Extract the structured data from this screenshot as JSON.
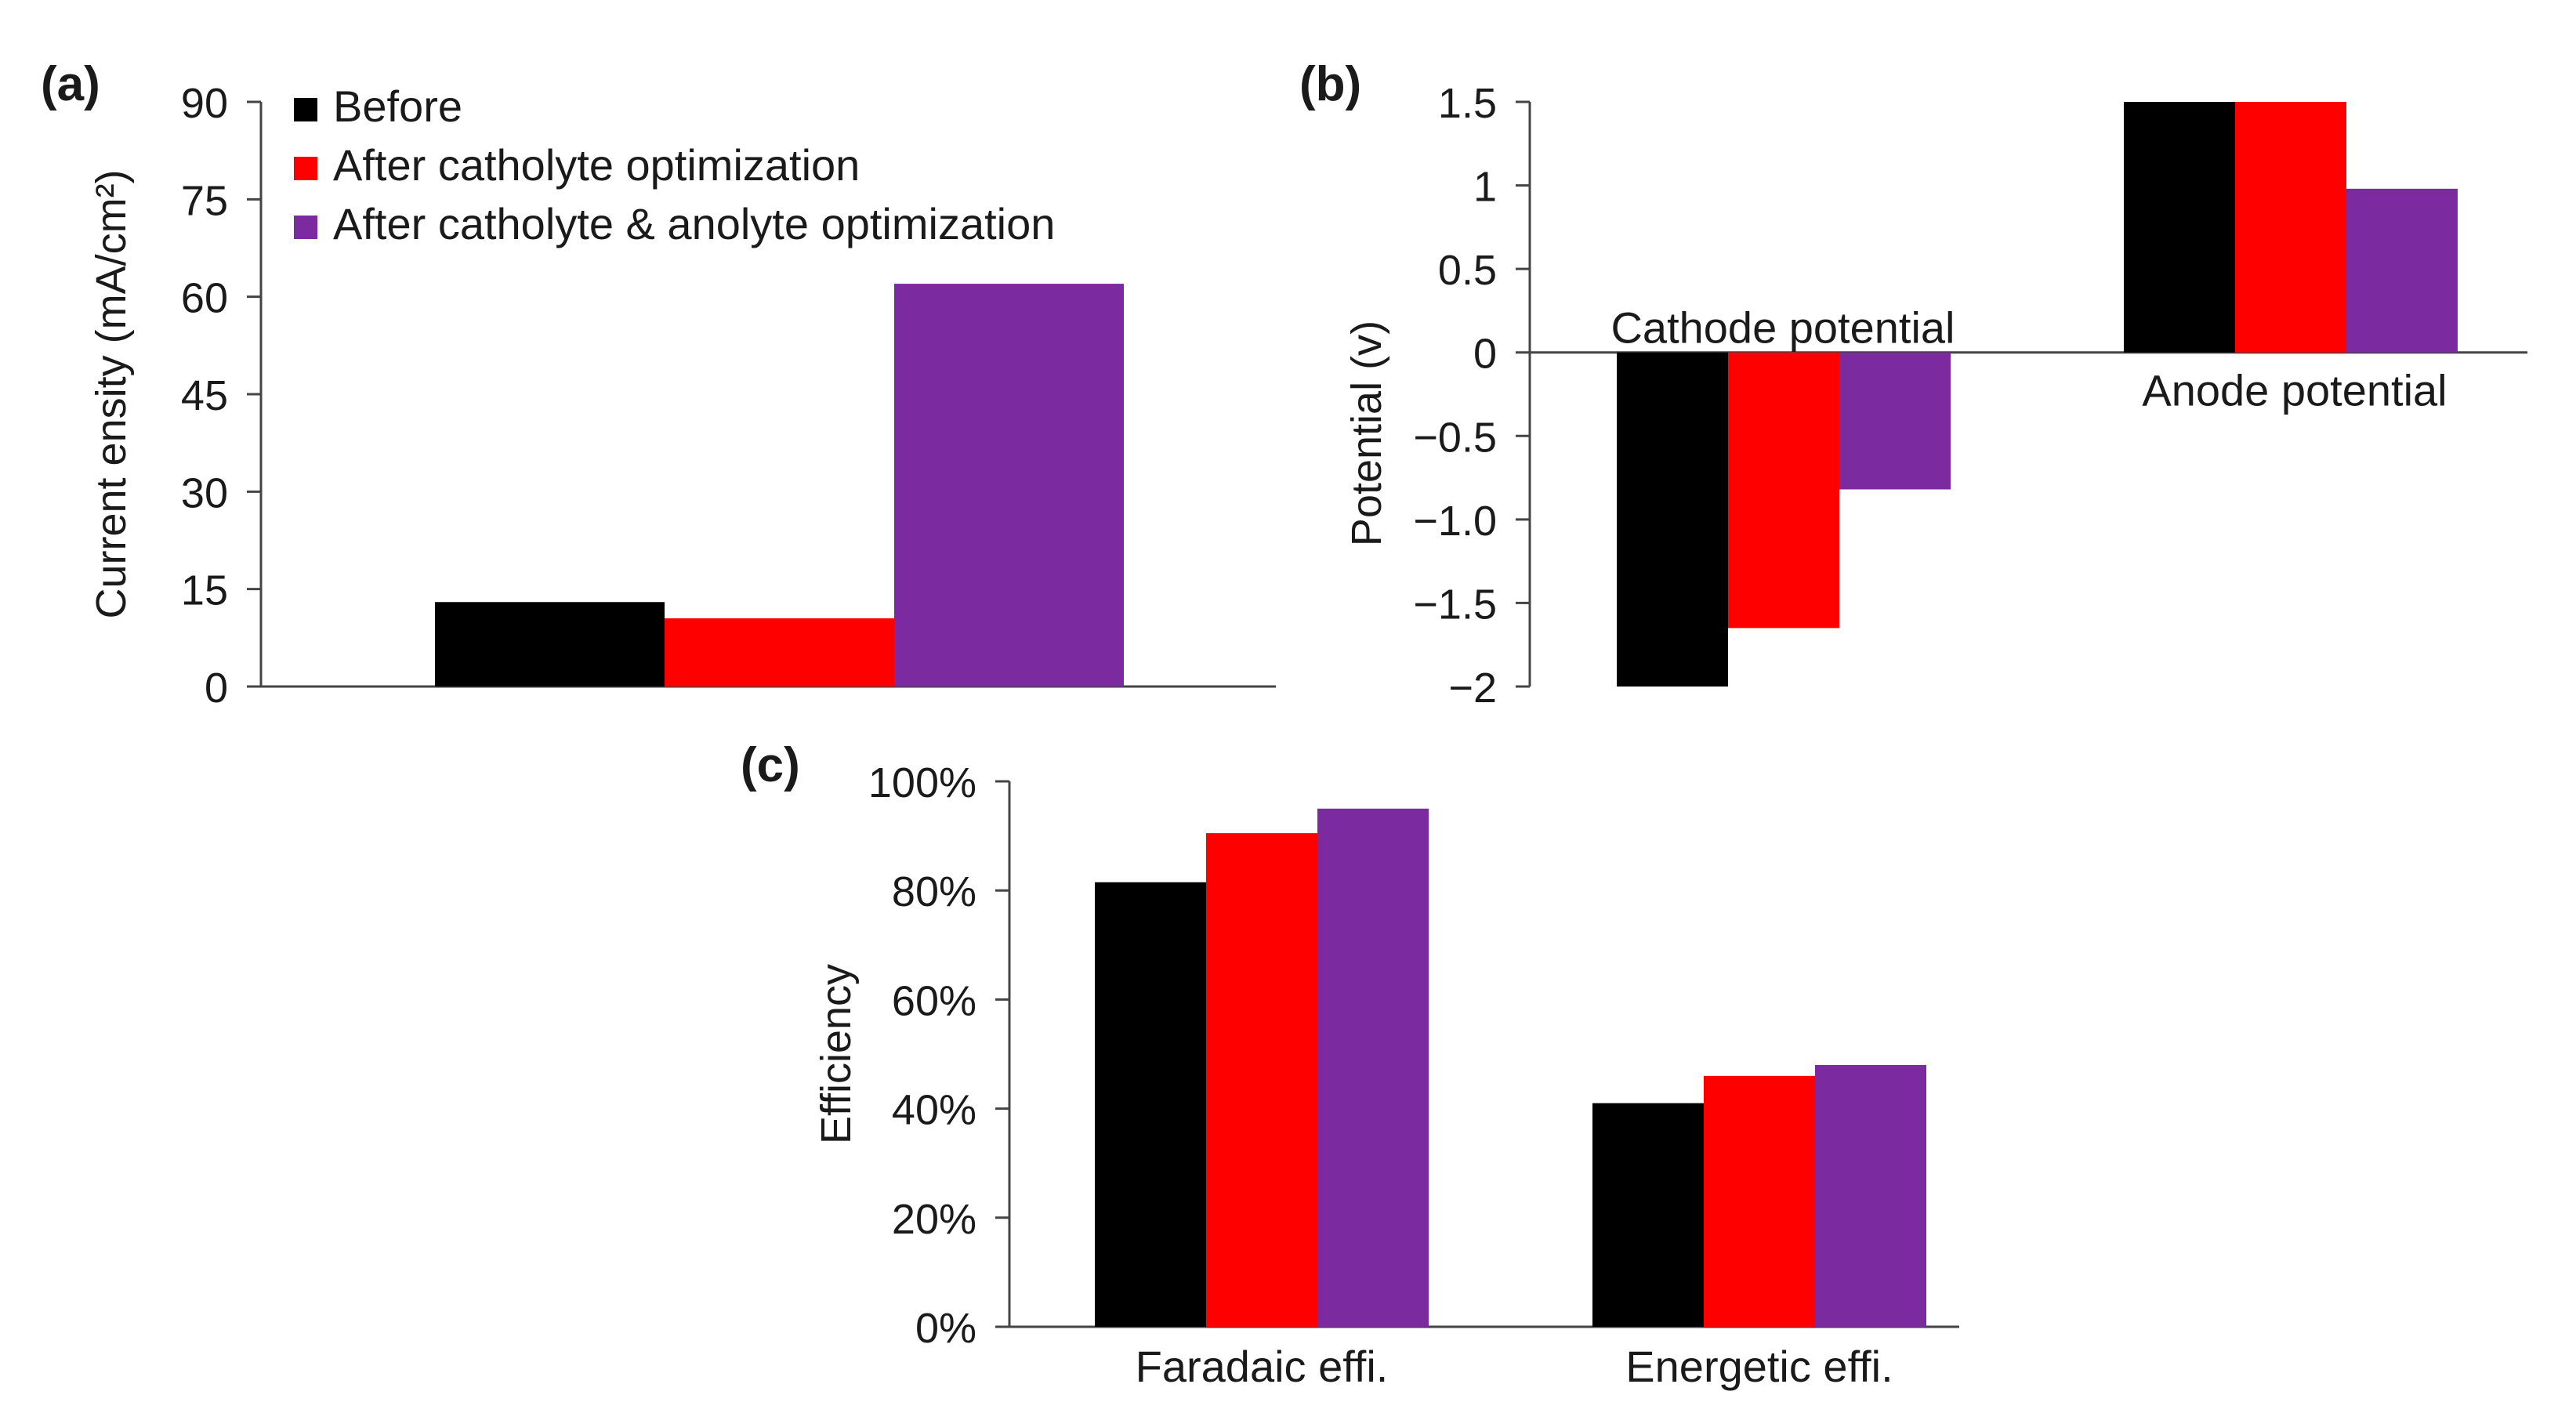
{
  "series_colors": [
    "#000000",
    "#ff0000",
    "#7b2aa0"
  ],
  "chart_data": [
    {
      "panel": "(a)",
      "type": "bar",
      "ylabel": "Current ensity (mA/cm²)",
      "ylim": [
        0,
        90
      ],
      "yticks": [
        "0",
        "15",
        "30",
        "45",
        "60",
        "75",
        "90"
      ],
      "categories": [
        ""
      ],
      "series": [
        {
          "name": "Before",
          "values": [
            13
          ]
        },
        {
          "name": "After catholyte optimization",
          "values": [
            10.5
          ]
        },
        {
          "name": "After catholyte & anolyte optimization",
          "values": [
            62
          ]
        }
      ],
      "legend": "top-left, inside plot"
    },
    {
      "panel": "(b)",
      "type": "bar",
      "ylabel": "Potential (v)",
      "ylim": [
        -2,
        1.5
      ],
      "yticks": [
        "−2",
        "−1.5",
        "−1.0",
        "−0.5",
        "0",
        "0.5",
        "1",
        "1.5"
      ],
      "categories": [
        "Cathode potential",
        "Anode potential"
      ],
      "series": [
        {
          "name": "Before",
          "values": [
            -2.0,
            1.5
          ]
        },
        {
          "name": "After catholyte optimization",
          "values": [
            -1.65,
            1.5
          ]
        },
        {
          "name": "After catholyte & anolyte optimization",
          "values": [
            -0.82,
            0.98
          ]
        }
      ]
    },
    {
      "panel": "(c)",
      "type": "bar",
      "ylabel": "Efficiency",
      "ylim": [
        0,
        100
      ],
      "yticks": [
        "0%",
        "20%",
        "40%",
        "60%",
        "80%",
        "100%"
      ],
      "categories": [
        "Faradaic effi.",
        "Energetic effi."
      ],
      "series": [
        {
          "name": "Before",
          "values": [
            81.5,
            41
          ]
        },
        {
          "name": "After catholyte optimization",
          "values": [
            90.5,
            46
          ]
        },
        {
          "name": "After catholyte & anolyte optimization",
          "values": [
            95,
            48
          ]
        }
      ]
    }
  ]
}
